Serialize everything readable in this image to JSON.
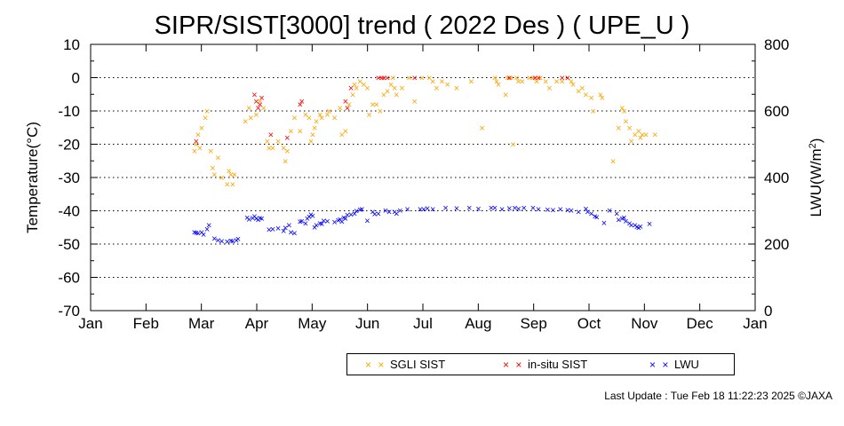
{
  "chart_data": {
    "type": "scatter",
    "title": "SIPR/SIST[3000] trend ( 2022 Des ) ( UPE_U )",
    "ylabel": "Temperature(°C)",
    "y2label": "LWU(W/m",
    "y2label_sup": "2",
    "y2label_end": ")",
    "ylim": [
      -70,
      10
    ],
    "y2lim": [
      0,
      800
    ],
    "yticks": [
      "10",
      "0",
      "-10",
      "-20",
      "-30",
      "-40",
      "-50",
      "-60",
      "-70"
    ],
    "y2ticks": [
      "800",
      "600",
      "400",
      "200",
      "0"
    ],
    "xticks": [
      "Jan",
      "Feb",
      "Mar",
      "Apr",
      "May",
      "Jun",
      "Jul",
      "Aug",
      "Sep",
      "Oct",
      "Nov",
      "Dec",
      "Jan"
    ],
    "grid": "horizontal dotted",
    "series": [
      {
        "name": "SGLI SIST",
        "color": "#ffa500",
        "axis": "left",
        "points": [
          [
            57,
            -22
          ],
          [
            58,
            -20
          ],
          [
            59,
            -17
          ],
          [
            60,
            -21
          ],
          [
            61,
            -15
          ],
          [
            63,
            -12
          ],
          [
            64,
            -10
          ],
          [
            66,
            -22
          ],
          [
            67,
            -27
          ],
          [
            68,
            -29
          ],
          [
            70,
            -24
          ],
          [
            72,
            -30
          ],
          [
            75,
            -32
          ],
          [
            76,
            -28
          ],
          [
            77,
            -29
          ],
          [
            78,
            -32
          ],
          [
            79,
            -29
          ],
          [
            85,
            -13
          ],
          [
            87,
            -9
          ],
          [
            88,
            -12
          ],
          [
            91,
            -11
          ],
          [
            93,
            -7
          ],
          [
            95,
            -9
          ],
          [
            97,
            -19
          ],
          [
            98,
            -21
          ],
          [
            100,
            -21
          ],
          [
            103,
            -19
          ],
          [
            106,
            -21
          ],
          [
            107,
            -25
          ],
          [
            108,
            -22
          ],
          [
            110,
            -16
          ],
          [
            112,
            -12
          ],
          [
            115,
            -16
          ],
          [
            118,
            -11
          ],
          [
            120,
            -12
          ],
          [
            121,
            -19
          ],
          [
            122,
            -17
          ],
          [
            123,
            -15
          ],
          [
            124,
            -13
          ],
          [
            126,
            -11
          ],
          [
            127,
            -12
          ],
          [
            130,
            -11
          ],
          [
            131,
            -10
          ],
          [
            134,
            -12
          ],
          [
            137,
            -9
          ],
          [
            138,
            -17
          ],
          [
            140,
            -16
          ],
          [
            142,
            -8
          ],
          [
            144,
            -5
          ],
          [
            145,
            -2
          ],
          [
            146,
            -3
          ],
          [
            148,
            -1
          ],
          [
            150,
            -2
          ],
          [
            152,
            -3
          ],
          [
            153,
            -11
          ],
          [
            155,
            -8
          ],
          [
            157,
            -8
          ],
          [
            159,
            -10
          ],
          [
            161,
            -5
          ],
          [
            163,
            -4
          ],
          [
            165,
            -2
          ],
          [
            166,
            0
          ],
          [
            167,
            -3
          ],
          [
            168,
            -5
          ],
          [
            171,
            -3
          ],
          [
            175,
            0
          ],
          [
            178,
            -7
          ],
          [
            182,
            0
          ],
          [
            186,
            0
          ],
          [
            188,
            -1
          ],
          [
            190,
            -3
          ],
          [
            193,
            -1
          ],
          [
            196,
            -2
          ],
          [
            201,
            -3
          ],
          [
            209,
            -1
          ],
          [
            215,
            -15
          ],
          [
            222,
            0
          ],
          [
            223,
            -1
          ],
          [
            224,
            -2
          ],
          [
            228,
            -5
          ],
          [
            229,
            0
          ],
          [
            231,
            0
          ],
          [
            232,
            -20
          ],
          [
            234,
            0
          ],
          [
            235,
            -1
          ],
          [
            237,
            -1
          ],
          [
            241,
            0
          ],
          [
            243,
            0
          ],
          [
            245,
            -1
          ],
          [
            247,
            0
          ],
          [
            250,
            -1
          ],
          [
            252,
            -3
          ],
          [
            256,
            -1
          ],
          [
            259,
            -1
          ],
          [
            262,
            0
          ],
          [
            264,
            -1
          ],
          [
            265,
            -2
          ],
          [
            268,
            -4
          ],
          [
            270,
            -3
          ],
          [
            272,
            -5
          ],
          [
            275,
            -6
          ],
          [
            276,
            -10
          ],
          [
            280,
            -5
          ],
          [
            281,
            -6
          ],
          [
            287,
            -25
          ],
          [
            290,
            -15
          ],
          [
            292,
            -9
          ],
          [
            293,
            -10
          ],
          [
            294,
            -13
          ],
          [
            296,
            -15
          ],
          [
            297,
            -19
          ],
          [
            299,
            -17
          ],
          [
            301,
            -16
          ],
          [
            302,
            -18
          ],
          [
            303,
            -17
          ],
          [
            305,
            -17
          ],
          [
            310,
            -17
          ]
        ]
      },
      {
        "name": "in-situ SIST",
        "color": "#ff0000",
        "axis": "left",
        "points": [
          [
            58,
            -19
          ],
          [
            90,
            -5
          ],
          [
            91,
            -7
          ],
          [
            92,
            -9
          ],
          [
            93,
            -8
          ],
          [
            94,
            -6
          ],
          [
            99,
            -17
          ],
          [
            108,
            -18
          ],
          [
            115,
            -8
          ],
          [
            116,
            -7
          ],
          [
            140,
            -7
          ],
          [
            141,
            -9
          ],
          [
            143,
            -3
          ],
          [
            158,
            0
          ],
          [
            160,
            0
          ],
          [
            161,
            0
          ],
          [
            163,
            0
          ],
          [
            178,
            0
          ],
          [
            230,
            0
          ],
          [
            244,
            0
          ],
          [
            246,
            0
          ],
          [
            259,
            0
          ],
          [
            262,
            0
          ]
        ]
      },
      {
        "name": "LWU",
        "color": "#0000ff",
        "axis": "right",
        "points": [
          [
            57,
            236
          ],
          [
            58,
            235
          ],
          [
            59,
            233
          ],
          [
            61,
            236
          ],
          [
            62,
            230
          ],
          [
            64,
            245
          ],
          [
            65,
            258
          ],
          [
            68,
            218
          ],
          [
            70,
            212
          ],
          [
            72,
            210
          ],
          [
            75,
            208
          ],
          [
            77,
            211
          ],
          [
            78,
            209
          ],
          [
            80,
            212
          ],
          [
            81,
            216
          ],
          [
            86,
            280
          ],
          [
            87,
            275
          ],
          [
            89,
            279
          ],
          [
            90,
            284
          ],
          [
            91,
            277
          ],
          [
            92,
            274
          ],
          [
            93,
            279
          ],
          [
            94,
            277
          ],
          [
            98,
            244
          ],
          [
            100,
            246
          ],
          [
            103,
            248
          ],
          [
            106,
            240
          ],
          [
            107,
            249
          ],
          [
            109,
            258
          ],
          [
            110,
            236
          ],
          [
            112,
            234
          ],
          [
            115,
            268
          ],
          [
            116,
            270
          ],
          [
            118,
            263
          ],
          [
            119,
            277
          ],
          [
            120,
            283
          ],
          [
            121,
            290
          ],
          [
            122,
            285
          ],
          [
            123,
            251
          ],
          [
            124,
            257
          ],
          [
            126,
            263
          ],
          [
            127,
            261
          ],
          [
            128,
            271
          ],
          [
            130,
            270
          ],
          [
            134,
            267
          ],
          [
            136,
            272
          ],
          [
            137,
            275
          ],
          [
            138,
            268
          ],
          [
            139,
            280
          ],
          [
            140,
            278
          ],
          [
            141,
            288
          ],
          [
            143,
            290
          ],
          [
            145,
            292
          ],
          [
            146,
            300
          ],
          [
            148,
            304
          ],
          [
            149,
            306
          ],
          [
            152,
            271
          ],
          [
            155,
            298
          ],
          [
            156,
            291
          ],
          [
            158,
            292
          ],
          [
            162,
            302
          ],
          [
            164,
            297
          ],
          [
            167,
            297
          ],
          [
            168,
            292
          ],
          [
            170,
            301
          ],
          [
            174,
            305
          ],
          [
            181,
            306
          ],
          [
            183,
            305
          ],
          [
            185,
            308
          ],
          [
            188,
            306
          ],
          [
            195,
            309
          ],
          [
            201,
            308
          ],
          [
            208,
            309
          ],
          [
            213,
            307
          ],
          [
            220,
            310
          ],
          [
            222,
            310
          ],
          [
            226,
            306
          ],
          [
            230,
            308
          ],
          [
            233,
            309
          ],
          [
            235,
            307
          ],
          [
            238,
            309
          ],
          [
            243,
            309
          ],
          [
            246,
            306
          ],
          [
            251,
            304
          ],
          [
            254,
            303
          ],
          [
            258,
            306
          ],
          [
            262,
            303
          ],
          [
            264,
            302
          ],
          [
            268,
            297
          ],
          [
            272,
            307
          ],
          [
            273,
            298
          ],
          [
            275,
            292
          ],
          [
            277,
            284
          ],
          [
            278,
            281
          ],
          [
            282,
            264
          ],
          [
            285,
            301
          ],
          [
            289,
            292
          ],
          [
            290,
            273
          ],
          [
            292,
            278
          ],
          [
            293,
            280
          ],
          [
            294,
            270
          ],
          [
            296,
            263
          ],
          [
            297,
            258
          ],
          [
            299,
            257
          ],
          [
            300,
            252
          ],
          [
            301,
            250
          ],
          [
            302,
            253
          ],
          [
            307,
            262
          ]
        ]
      }
    ]
  },
  "legend": {
    "sgli": "SGLI SIST",
    "insitu": "in-situ SIST",
    "lwu": "LWU",
    "marker": "× ×"
  },
  "footer": "Last Update : Tue Feb 18 11:22:23 2025  ©JAXA"
}
